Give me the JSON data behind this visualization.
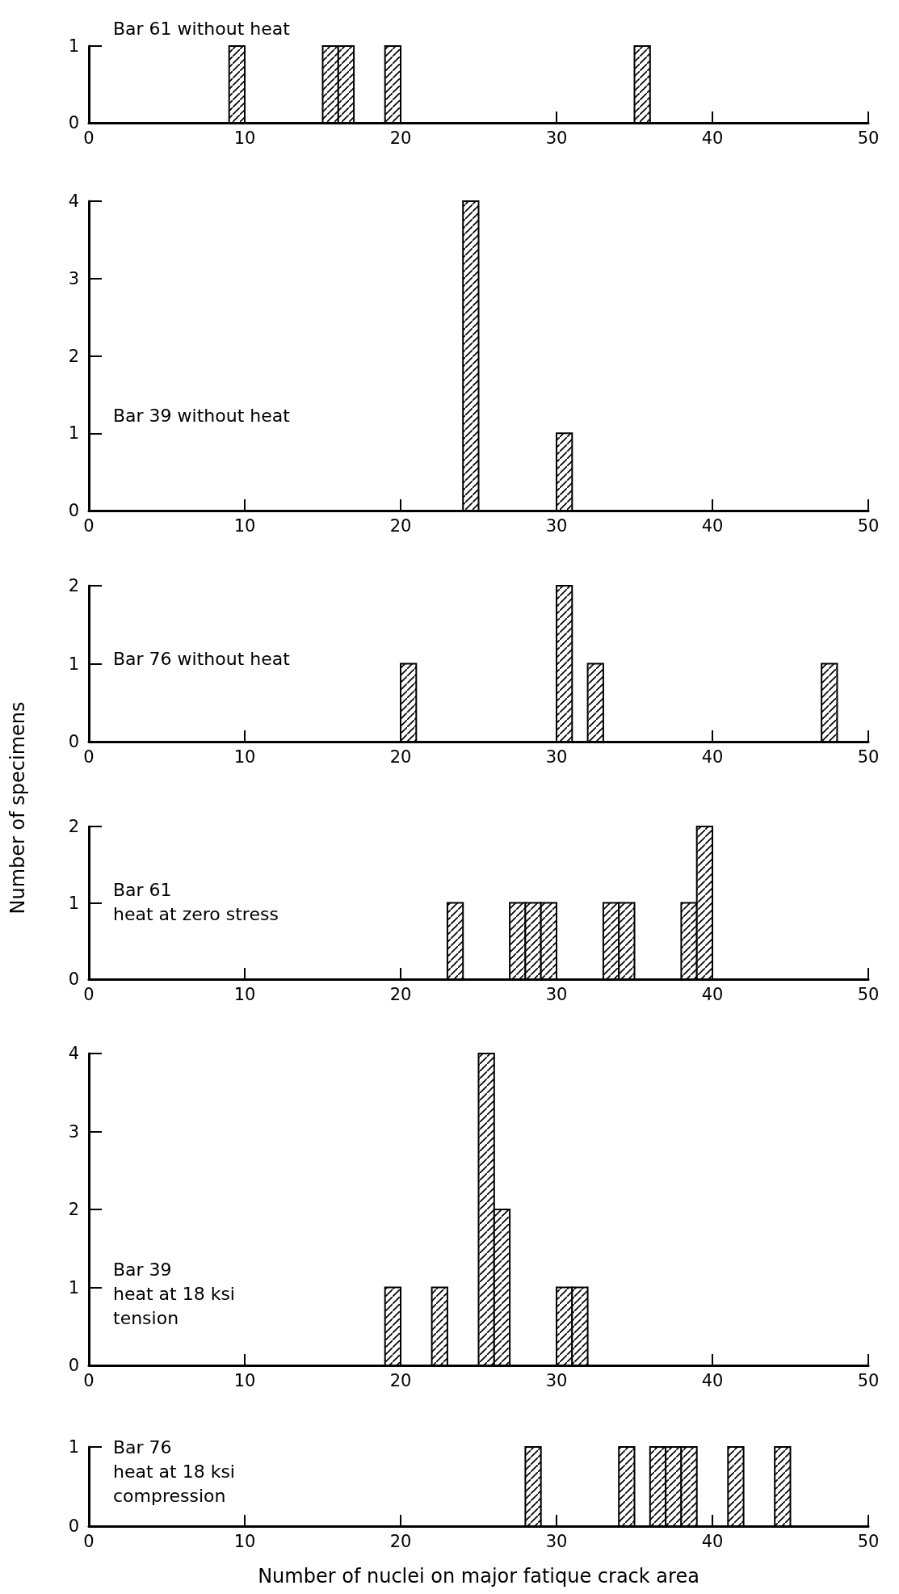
{
  "chart_data": [
    {
      "type": "histogram",
      "title": "Bar 61 without heat",
      "bins": [
        0,
        1,
        2,
        3,
        4,
        5,
        6,
        7,
        8,
        9,
        10,
        11,
        12,
        13,
        14,
        15,
        16,
        17,
        18,
        19,
        20,
        21,
        22,
        23,
        24,
        25,
        26,
        27,
        28,
        29,
        30,
        31,
        32,
        33,
        34,
        35,
        36,
        37,
        38,
        39,
        40,
        41,
        42,
        43,
        44,
        45,
        46,
        47,
        48,
        49,
        50
      ],
      "values": [
        0,
        0,
        0,
        0,
        0,
        0,
        0,
        0,
        0,
        1,
        0,
        0,
        0,
        0,
        0,
        1,
        1,
        0,
        0,
        1,
        0,
        0,
        0,
        0,
        0,
        0,
        0,
        0,
        0,
        0,
        0,
        0,
        0,
        0,
        0,
        1,
        0,
        0,
        0,
        0,
        0,
        0,
        0,
        0,
        0,
        0,
        0,
        0,
        0,
        0
      ],
      "color": "#000000",
      "xlim": [
        0,
        50
      ],
      "xticks": [
        0,
        10,
        20,
        30,
        40,
        50
      ],
      "ylim": [
        0,
        1
      ],
      "yticks": [
        0,
        1
      ],
      "grid": false
    },
    {
      "type": "histogram",
      "title": "Bar 39 without heat",
      "bins": [
        0,
        1,
        2,
        3,
        4,
        5,
        6,
        7,
        8,
        9,
        10,
        11,
        12,
        13,
        14,
        15,
        16,
        17,
        18,
        19,
        20,
        21,
        22,
        23,
        24,
        25,
        26,
        27,
        28,
        29,
        30,
        31,
        32,
        33,
        34,
        35,
        36,
        37,
        38,
        39,
        40,
        41,
        42,
        43,
        44,
        45,
        46,
        47,
        48,
        49,
        50
      ],
      "values": [
        0,
        0,
        0,
        0,
        0,
        0,
        0,
        0,
        0,
        0,
        0,
        0,
        0,
        0,
        0,
        0,
        0,
        0,
        0,
        0,
        0,
        0,
        0,
        0,
        4,
        0,
        0,
        0,
        0,
        0,
        1,
        0,
        0,
        0,
        0,
        0,
        0,
        0,
        0,
        0,
        0,
        0,
        0,
        0,
        0,
        0,
        0,
        0,
        0,
        0
      ],
      "color": "#000000",
      "xlim": [
        0,
        50
      ],
      "xticks": [
        0,
        10,
        20,
        30,
        40,
        50
      ],
      "ylim": [
        0,
        4
      ],
      "yticks": [
        0,
        1,
        2,
        3,
        4
      ],
      "grid": false
    },
    {
      "type": "histogram",
      "title": "Bar 76 without heat",
      "bins": [
        0,
        1,
        2,
        3,
        4,
        5,
        6,
        7,
        8,
        9,
        10,
        11,
        12,
        13,
        14,
        15,
        16,
        17,
        18,
        19,
        20,
        21,
        22,
        23,
        24,
        25,
        26,
        27,
        28,
        29,
        30,
        31,
        32,
        33,
        34,
        35,
        36,
        37,
        38,
        39,
        40,
        41,
        42,
        43,
        44,
        45,
        46,
        47,
        48,
        49,
        50
      ],
      "values": [
        0,
        0,
        0,
        0,
        0,
        0,
        0,
        0,
        0,
        0,
        0,
        0,
        0,
        0,
        0,
        0,
        0,
        0,
        0,
        0,
        1,
        0,
        0,
        0,
        0,
        0,
        0,
        0,
        0,
        0,
        2,
        0,
        1,
        0,
        0,
        0,
        0,
        0,
        0,
        0,
        0,
        0,
        0,
        0,
        0,
        0,
        0,
        1,
        0,
        0
      ],
      "color": "#000000",
      "xlim": [
        0,
        50
      ],
      "xticks": [
        0,
        10,
        20,
        30,
        40,
        50
      ],
      "ylim": [
        0,
        2
      ],
      "yticks": [
        0,
        1,
        2
      ],
      "grid": false
    },
    {
      "type": "histogram",
      "title": "Bar 61\nheat at zero stress",
      "ylabel": "Number of specimens",
      "bins": [
        0,
        1,
        2,
        3,
        4,
        5,
        6,
        7,
        8,
        9,
        10,
        11,
        12,
        13,
        14,
        15,
        16,
        17,
        18,
        19,
        20,
        21,
        22,
        23,
        24,
        25,
        26,
        27,
        28,
        29,
        30,
        31,
        32,
        33,
        34,
        35,
        36,
        37,
        38,
        39,
        40,
        41,
        42,
        43,
        44,
        45,
        46,
        47,
        48,
        49,
        50
      ],
      "values": [
        0,
        0,
        0,
        0,
        0,
        0,
        0,
        0,
        0,
        0,
        0,
        0,
        0,
        0,
        0,
        0,
        0,
        0,
        0,
        0,
        0,
        0,
        0,
        1,
        0,
        0,
        0,
        1,
        1,
        1,
        0,
        0,
        0,
        1,
        1,
        0,
        0,
        0,
        1,
        2,
        0,
        0,
        0,
        0,
        0,
        0,
        0,
        0,
        0,
        0
      ],
      "color": "#000000",
      "xlim": [
        0,
        50
      ],
      "xticks": [
        0,
        10,
        20,
        30,
        40,
        50
      ],
      "ylim": [
        0,
        2
      ],
      "yticks": [
        0,
        1,
        2
      ],
      "grid": false
    },
    {
      "type": "histogram",
      "title": "Bar 39\nheat at 18 ksi\ntension",
      "bins": [
        0,
        1,
        2,
        3,
        4,
        5,
        6,
        7,
        8,
        9,
        10,
        11,
        12,
        13,
        14,
        15,
        16,
        17,
        18,
        19,
        20,
        21,
        22,
        23,
        24,
        25,
        26,
        27,
        28,
        29,
        30,
        31,
        32,
        33,
        34,
        35,
        36,
        37,
        38,
        39,
        40,
        41,
        42,
        43,
        44,
        45,
        46,
        47,
        48,
        49,
        50
      ],
      "values": [
        0,
        0,
        0,
        0,
        0,
        0,
        0,
        0,
        0,
        0,
        0,
        0,
        0,
        0,
        0,
        0,
        0,
        0,
        0,
        1,
        0,
        0,
        1,
        0,
        0,
        4,
        2,
        0,
        0,
        0,
        1,
        1,
        0,
        0,
        0,
        0,
        0,
        0,
        0,
        0,
        0,
        0,
        0,
        0,
        0,
        0,
        0,
        0,
        0,
        0
      ],
      "color": "#000000",
      "xlim": [
        0,
        50
      ],
      "xticks": [
        0,
        10,
        20,
        30,
        40,
        50
      ],
      "ylim": [
        0,
        4
      ],
      "yticks": [
        0,
        1,
        2,
        3,
        4
      ],
      "grid": false
    },
    {
      "type": "histogram",
      "title": "Bar 76\nheat at 18 ksi\ncompression",
      "xlabel": "Number of nuclei on major fatique crack area",
      "bins": [
        0,
        1,
        2,
        3,
        4,
        5,
        6,
        7,
        8,
        9,
        10,
        11,
        12,
        13,
        14,
        15,
        16,
        17,
        18,
        19,
        20,
        21,
        22,
        23,
        24,
        25,
        26,
        27,
        28,
        29,
        30,
        31,
        32,
        33,
        34,
        35,
        36,
        37,
        38,
        39,
        40,
        41,
        42,
        43,
        44,
        45,
        46,
        47,
        48,
        49,
        50
      ],
      "values": [
        0,
        0,
        0,
        0,
        0,
        0,
        0,
        0,
        0,
        0,
        0,
        0,
        0,
        0,
        0,
        0,
        0,
        0,
        0,
        0,
        0,
        0,
        0,
        0,
        0,
        0,
        0,
        0,
        1,
        0,
        0,
        0,
        0,
        0,
        1,
        0,
        1,
        1,
        1,
        0,
        0,
        1,
        0,
        0,
        1,
        0,
        0,
        0,
        0,
        0
      ],
      "color": "#000000",
      "xlim": [
        0,
        50
      ],
      "xticks": [
        0,
        10,
        20,
        30,
        40,
        50
      ],
      "ylim": [
        0,
        1
      ],
      "yticks": [
        0,
        1
      ],
      "grid": false
    }
  ]
}
